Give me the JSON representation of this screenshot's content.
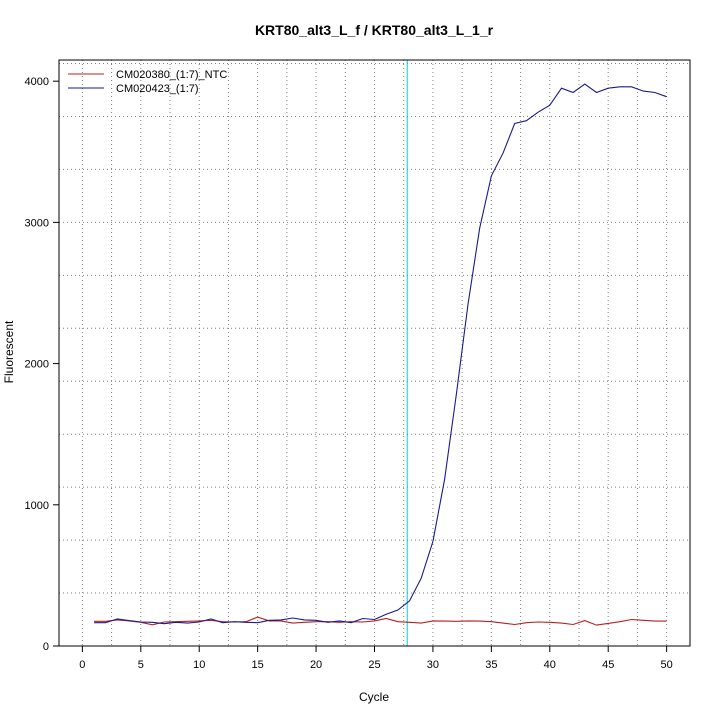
{
  "chart_data": {
    "type": "line",
    "title": "KRT80_alt3_L_f / KRT80_alt3_L_1_r",
    "xlabel": "Cycle",
    "ylabel": "Fluorescent",
    "xlim": [
      -2,
      52
    ],
    "ylim": [
      0,
      4150
    ],
    "x_ticks": [
      0,
      5,
      10,
      15,
      20,
      25,
      30,
      35,
      40,
      45,
      50
    ],
    "y_ticks": [
      0,
      1000,
      2000,
      3000,
      4000
    ],
    "grid": "dotted",
    "legend_position": "top-left",
    "threshold_line": {
      "x": 27.8,
      "color": "#00cfe0"
    },
    "series": [
      {
        "name": "CM020380_(1:7)_NTC",
        "color": "#b22222",
        "x": [
          1,
          2,
          3,
          4,
          5,
          6,
          7,
          8,
          9,
          10,
          11,
          12,
          13,
          14,
          15,
          16,
          17,
          18,
          19,
          20,
          21,
          22,
          23,
          24,
          25,
          26,
          27,
          28,
          29,
          30,
          31,
          32,
          33,
          34,
          35,
          36,
          37,
          38,
          39,
          40,
          41,
          42,
          43,
          44,
          45,
          46,
          47,
          48,
          49,
          50
        ],
        "values": [
          175,
          175,
          185,
          178,
          168,
          150,
          170,
          172,
          175,
          178,
          182,
          172,
          170,
          172,
          205,
          178,
          178,
          162,
          168,
          172,
          172,
          168,
          172,
          170,
          178,
          195,
          172,
          168,
          162,
          178,
          176,
          175,
          178,
          176,
          172,
          162,
          152,
          165,
          170,
          168,
          162,
          152,
          180,
          148,
          160,
          172,
          188,
          182,
          176,
          176
        ]
      },
      {
        "name": "CM020423_(1:7)",
        "color": "#1a1a8c",
        "x": [
          1,
          2,
          3,
          4,
          5,
          6,
          7,
          8,
          9,
          10,
          11,
          12,
          13,
          14,
          15,
          16,
          17,
          18,
          19,
          20,
          21,
          22,
          23,
          24,
          25,
          26,
          27,
          28,
          29,
          30,
          31,
          32,
          33,
          34,
          35,
          36,
          37,
          38,
          39,
          40,
          41,
          42,
          43,
          44,
          45,
          46,
          47,
          48,
          49,
          50
        ],
        "values": [
          165,
          165,
          192,
          180,
          170,
          168,
          158,
          168,
          162,
          170,
          192,
          165,
          172,
          168,
          165,
          182,
          185,
          198,
          185,
          182,
          168,
          178,
          165,
          195,
          188,
          225,
          255,
          320,
          480,
          740,
          1180,
          1780,
          2420,
          2960,
          3330,
          3490,
          3700,
          3720,
          3780,
          3830,
          3950,
          3920,
          3980,
          3920,
          3950,
          3960,
          3960,
          3930,
          3920,
          3890
        ]
      }
    ]
  }
}
